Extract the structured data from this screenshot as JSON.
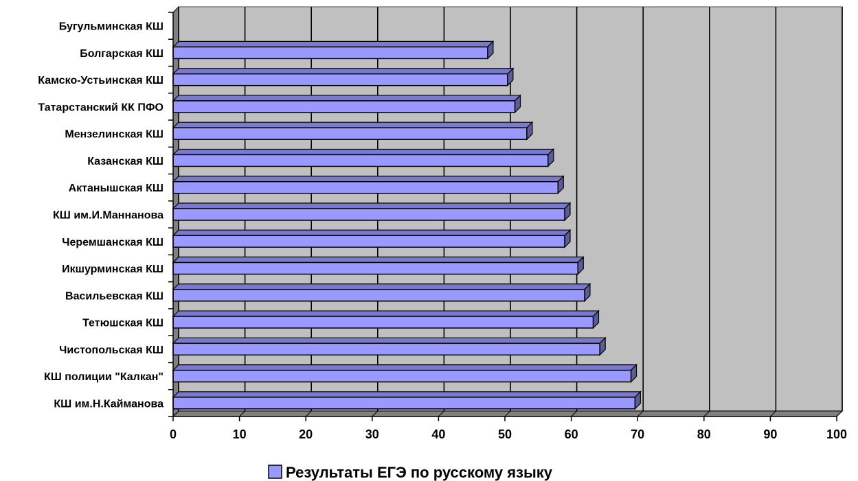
{
  "chart_data": {
    "type": "bar",
    "orientation": "horizontal",
    "style": "3d",
    "categories": [
      "КШ им.Н.Кайманова",
      "КШ полиции \"Калкан\"",
      "Чистопольская КШ",
      "Тетюшская КШ",
      "Васильевская КШ",
      "Икшурминская КШ",
      "Черемшанская КШ",
      "КШ им.И.Маннанова",
      "Актанышская КШ",
      "Казанская КШ",
      "Мензелинская КШ",
      "Татарстанский КК ПФО",
      "Камско-Устьинская КШ",
      "Болгарская КШ",
      "Бугульминская КШ"
    ],
    "series": [
      {
        "name": "Результаты ЕГЭ по русскому языку",
        "color": "#9999ff",
        "values": [
          69.6,
          69.0,
          64.3,
          63.3,
          62.0,
          61.0,
          59.0,
          59.0,
          58.0,
          56.5,
          53.3,
          51.5,
          50.4,
          47.4,
          0
        ]
      }
    ],
    "xlim": [
      0,
      100
    ],
    "x_ticks": [
      0,
      10,
      20,
      30,
      40,
      50,
      60,
      70,
      80,
      90,
      100
    ],
    "grid": true,
    "legend_position": "bottom",
    "colors": {
      "wall": "#c0c0c0",
      "floor": "#808080",
      "bar_front": "#9999ff",
      "bar_top": "#7a7acc",
      "bar_side": "#5c5c99",
      "outline": "#000000"
    }
  }
}
